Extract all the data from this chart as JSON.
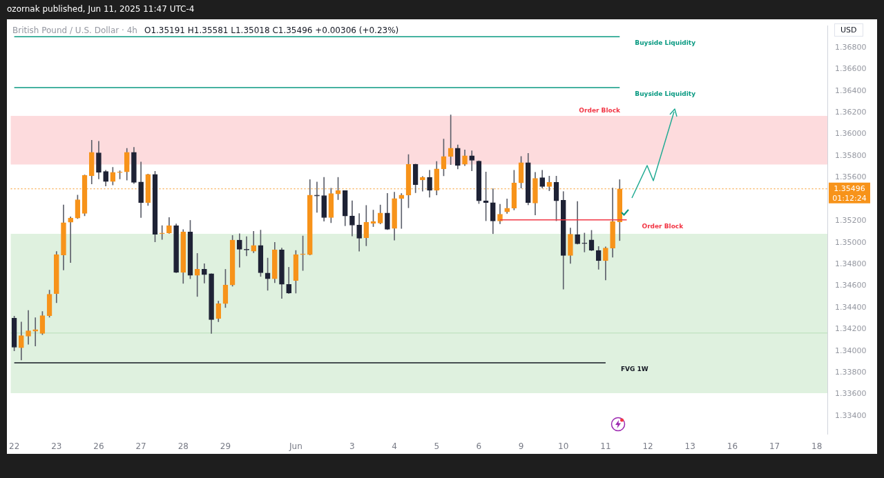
{
  "chart_data": {
    "type": "candlestick",
    "title": "British Pound / U.S. Dollar · 4h",
    "subtitle": "O1.35191 H1.35581 L1.35018 C1.35496 +0.00306 (+0.23%)",
    "ylabel": "USD",
    "annotations": [
      "ozornak published, Jun 11, 2025 11:47 UTC-4",
      "01:12:24"
    ],
    "categories": [
      "22",
      null,
      null,
      null,
      null,
      null,
      "23",
      null,
      null,
      null,
      null,
      null,
      "26",
      null,
      null,
      null,
      null,
      null,
      "27",
      null,
      null,
      null,
      null,
      null,
      "28",
      null,
      null,
      null,
      null,
      null,
      "29",
      null,
      null,
      null,
      null,
      null,
      null,
      null,
      null,
      null,
      "Jun",
      null,
      null,
      null,
      null,
      null,
      null,
      null,
      "3",
      null,
      null,
      null,
      null,
      null,
      "4",
      null,
      null,
      null,
      null,
      null,
      "5",
      null,
      null,
      null,
      null,
      null,
      "6",
      null,
      null,
      null,
      null,
      null,
      "9",
      null,
      null,
      null,
      null,
      null,
      "10",
      null,
      null,
      null,
      null,
      null,
      "11",
      null,
      null,
      null,
      null,
      null,
      "12",
      null,
      null,
      null,
      null,
      null,
      "13",
      null,
      null,
      null,
      null,
      null,
      "16",
      null,
      null,
      null,
      null,
      null,
      "17",
      null,
      null,
      null,
      null,
      null,
      "18",
      null
    ],
    "ohlc": [
      [
        1.34301,
        1.3432,
        1.34,
        1.34033
      ],
      [
        1.34029,
        1.34267,
        1.33916,
        1.3414
      ],
      [
        1.34135,
        1.34374,
        1.34061,
        1.34186
      ],
      [
        1.34182,
        1.34306,
        1.34044,
        1.34197
      ],
      [
        1.34161,
        1.34363,
        1.3415,
        1.34325
      ],
      [
        1.34325,
        1.34561,
        1.3431,
        1.34523
      ],
      [
        1.34529,
        1.34917,
        1.34444,
        1.34889
      ],
      [
        1.34885,
        1.35347,
        1.34747,
        1.35183
      ],
      [
        1.35188,
        1.35237,
        1.34815,
        1.35226
      ],
      [
        1.35226,
        1.35439,
        1.35222,
        1.35396
      ],
      [
        1.35269,
        1.35624,
        1.35247,
        1.3562
      ],
      [
        1.35616,
        1.35944,
        1.35541,
        1.35833
      ],
      [
        1.35829,
        1.35935,
        1.35588,
        1.35648
      ],
      [
        1.35656,
        1.35667,
        1.35522,
        1.35563
      ],
      [
        1.35563,
        1.35695,
        1.35531,
        1.35648
      ],
      [
        1.35646,
        1.35663,
        1.35588,
        1.3565
      ],
      [
        1.35652,
        1.35869,
        1.35577,
        1.35833
      ],
      [
        1.35833,
        1.3588,
        1.35545,
        1.35556
      ],
      [
        1.3556,
        1.35744,
        1.3523,
        1.35369
      ],
      [
        1.35369,
        1.35633,
        1.35343,
        1.35629
      ],
      [
        1.35629,
        1.35658,
        1.35007,
        1.35077
      ],
      [
        1.35081,
        1.35156,
        1.35028,
        1.35083
      ],
      [
        1.35088,
        1.35232,
        1.35084,
        1.35156
      ],
      [
        1.35156,
        1.35173,
        1.34721,
        1.34725
      ],
      [
        1.34725,
        1.3512,
        1.34623,
        1.35098
      ],
      [
        1.35098,
        1.35205,
        1.34666,
        1.34698
      ],
      [
        1.34698,
        1.349,
        1.34502,
        1.34753
      ],
      [
        1.34753,
        1.34804,
        1.34625,
        1.34704
      ],
      [
        1.34713,
        1.34713,
        1.34161,
        1.34289
      ],
      [
        1.343,
        1.3446,
        1.34269,
        1.34436
      ],
      [
        1.34436,
        1.34753,
        1.344,
        1.34608
      ],
      [
        1.34608,
        1.35066,
        1.34597,
        1.35023
      ],
      [
        1.35023,
        1.35081,
        1.34772,
        1.34938
      ],
      [
        1.34936,
        1.35055,
        1.34878,
        1.34932
      ],
      [
        1.34921,
        1.35104,
        1.34906,
        1.34974
      ],
      [
        1.34974,
        1.35115,
        1.34687,
        1.34721
      ],
      [
        1.34719,
        1.34857,
        1.34559,
        1.34665
      ],
      [
        1.34665,
        1.35002,
        1.34629,
        1.34932
      ],
      [
        1.34932,
        1.34949,
        1.34484,
        1.34614
      ],
      [
        1.34614,
        1.34772,
        1.34529,
        1.34533
      ],
      [
        1.3465,
        1.34927,
        1.34533,
        1.34889
      ],
      [
        1.34889,
        1.35061,
        1.34742,
        1.34893
      ],
      [
        1.34889,
        1.35581,
        1.34885,
        1.35438
      ],
      [
        1.35438,
        1.3556,
        1.35279,
        1.3543
      ],
      [
        1.35434,
        1.35602,
        1.35198,
        1.3523
      ],
      [
        1.3523,
        1.35502,
        1.35183,
        1.35453
      ],
      [
        1.35449,
        1.35602,
        1.35396,
        1.35479
      ],
      [
        1.35479,
        1.3548,
        1.35155,
        1.35245
      ],
      [
        1.35245,
        1.35385,
        1.35061,
        1.3516
      ],
      [
        1.35162,
        1.35268,
        1.34921,
        1.3504
      ],
      [
        1.35044,
        1.35343,
        1.3497,
        1.35187
      ],
      [
        1.35176,
        1.353,
        1.35147,
        1.35194
      ],
      [
        1.3518,
        1.35347,
        1.35172,
        1.35272
      ],
      [
        1.35272,
        1.35455,
        1.35119,
        1.35123
      ],
      [
        1.3513,
        1.35466,
        1.35023,
        1.35407
      ],
      [
        1.35407,
        1.35453,
        1.3513,
        1.35438
      ],
      [
        1.35438,
        1.35812,
        1.35321,
        1.35723
      ],
      [
        1.35723,
        1.35725,
        1.3546,
        1.35535
      ],
      [
        1.35578,
        1.3561,
        1.35475,
        1.35603
      ],
      [
        1.35603,
        1.35667,
        1.35418,
        1.35482
      ],
      [
        1.35482,
        1.35748,
        1.35439,
        1.3568
      ],
      [
        1.3568,
        1.35955,
        1.35616,
        1.35795
      ],
      [
        1.35795,
        1.36178,
        1.3572,
        1.35872
      ],
      [
        1.35872,
        1.35901,
        1.3568,
        1.35712
      ],
      [
        1.35723,
        1.35855,
        1.3571,
        1.35801
      ],
      [
        1.35801,
        1.35848,
        1.35663,
        1.35759
      ],
      [
        1.35752,
        1.35755,
        1.3536,
        1.35386
      ],
      [
        1.35386,
        1.35652,
        1.35201,
        1.35369
      ],
      [
        1.35369,
        1.35497,
        1.35082,
        1.35199
      ],
      [
        1.35199,
        1.35354,
        1.35173,
        1.35262
      ],
      [
        1.35284,
        1.35403,
        1.35269,
        1.35318
      ],
      [
        1.35318,
        1.35667,
        1.35301,
        1.3555
      ],
      [
        1.3555,
        1.35795,
        1.35503,
        1.35737
      ],
      [
        1.35737,
        1.35823,
        1.35348,
        1.35369
      ],
      [
        1.35365,
        1.35648,
        1.35254,
        1.35593
      ],
      [
        1.35599,
        1.35667,
        1.35503,
        1.35518
      ],
      [
        1.35518,
        1.35614,
        1.35478,
        1.35556
      ],
      [
        1.35556,
        1.35614,
        1.35201,
        1.35386
      ],
      [
        1.3539,
        1.35471,
        1.3457,
        1.34881
      ],
      [
        1.34881,
        1.35135,
        1.34807,
        1.35077
      ],
      [
        1.35073,
        1.3538,
        1.34986,
        1.34988
      ],
      [
        1.34994,
        1.35088,
        1.34913,
        1.3499
      ],
      [
        1.35024,
        1.35113,
        1.34924,
        1.34928
      ],
      [
        1.34928,
        1.34964,
        1.34753,
        1.34832
      ],
      [
        1.34832,
        1.3496,
        1.34655,
        1.34949
      ],
      [
        1.34949,
        1.35503,
        1.34864,
        1.35194
      ],
      [
        1.35191,
        1.35581,
        1.35018,
        1.35496
      ],
      null,
      null,
      null,
      null,
      null,
      null,
      null,
      null,
      null,
      null,
      null,
      null,
      null,
      null,
      null,
      null,
      null,
      null,
      null,
      null,
      null,
      null,
      null,
      null,
      null,
      null,
      null,
      null,
      null
    ],
    "colors": [
      "#1e2235",
      "#f7931a",
      "#f7931a",
      "#f7931a",
      "#f7931a",
      "#f7931a",
      "#f7931a",
      "#f7931a",
      "#f7931a",
      "#f7931a",
      "#f7931a",
      "#f7931a",
      "#1e2235",
      "#1e2235",
      "#f7931a",
      "#f7931a",
      "#f7931a",
      "#1e2235",
      "#1e2235",
      "#f7931a",
      "#1e2235",
      "#f7931a",
      "#f7931a",
      "#1e2235",
      "#f7931a",
      "#1e2235",
      "#f7931a",
      "#1e2235",
      "#1e2235",
      "#f7931a",
      "#f7931a",
      "#f7931a",
      "#1e2235",
      "#1e2235",
      "#f7931a",
      "#1e2235",
      "#1e2235",
      "#f7931a",
      "#1e2235",
      "#1e2235",
      "#f7931a",
      "#f7931a",
      "#f7931a",
      "#1e2235",
      "#1e2235",
      "#f7931a",
      "#f7931a",
      "#1e2235",
      "#1e2235",
      "#1e2235",
      "#f7931a",
      "#f7931a",
      "#f7931a",
      "#1e2235",
      "#f7931a",
      "#f7931a",
      "#f7931a",
      "#1e2235",
      "#f7931a",
      "#1e2235",
      "#f7931a",
      "#f7931a",
      "#f7931a",
      "#1e2235",
      "#f7931a",
      "#1e2235",
      "#1e2235",
      "#1e2235",
      "#1e2235",
      "#f7931a",
      "#f7931a",
      "#f7931a",
      "#f7931a",
      "#1e2235",
      "#f7931a",
      "#1e2235",
      "#f7931a",
      "#1e2235",
      "#1e2235",
      "#f7931a",
      "#1e2235",
      "#1e2235",
      "#1e2235",
      "#1e2235",
      "#f7931a",
      "#f7931a",
      "#f7931a",
      null,
      null,
      null,
      null,
      null,
      null,
      null,
      null,
      null,
      null,
      null,
      null,
      null,
      null,
      null,
      null,
      null,
      null,
      null,
      null,
      null,
      null,
      null,
      null,
      null,
      null,
      null,
      null,
      null
    ],
    "series": [
      {
        "type": "line",
        "name": "Buyside Liquidity",
        "color": "#089981",
        "values": [
          1.369,
          1.369,
          1.369,
          1.369,
          1.369,
          1.369,
          1.369,
          1.369,
          1.369,
          1.369,
          1.369,
          1.369,
          1.369,
          1.369,
          1.369,
          1.369,
          1.369,
          1.369,
          1.369,
          1.369,
          1.369,
          1.369,
          1.369,
          1.369,
          1.369,
          1.369,
          1.369,
          1.369,
          1.369,
          1.369,
          1.369,
          1.369,
          1.369,
          1.369,
          1.369,
          1.369,
          1.369,
          1.369,
          1.369,
          1.369,
          1.369,
          1.369,
          1.369,
          1.369,
          1.369,
          1.369,
          1.369,
          1.369,
          1.369,
          1.369,
          1.369,
          1.369,
          1.369,
          1.369,
          1.369,
          1.369,
          1.369,
          1.369,
          1.369,
          1.369,
          1.369,
          1.369,
          1.369,
          1.369,
          1.369,
          1.369,
          1.369,
          1.369,
          1.369,
          1.369,
          1.369,
          1.369,
          1.369,
          1.369,
          1.369,
          1.369,
          1.369,
          1.369,
          1.369,
          1.369,
          1.369,
          1.369,
          1.369,
          1.369,
          1.369,
          1.369,
          1.369,
          null,
          null,
          null,
          null,
          null,
          null,
          null,
          null,
          null,
          null,
          null,
          null,
          null,
          null,
          null,
          null,
          null,
          null,
          null,
          null,
          null,
          null,
          null,
          null,
          null,
          null,
          null,
          null,
          null
        ]
      },
      {
        "type": "line",
        "name": "Buyside Liquidity",
        "color": "#089981",
        "values": [
          1.3643,
          1.3643,
          1.3643,
          1.3643,
          1.3643,
          1.3643,
          1.3643,
          1.3643,
          1.3643,
          1.3643,
          1.3643,
          1.3643,
          1.3643,
          1.3643,
          1.3643,
          1.3643,
          1.3643,
          1.3643,
          1.3643,
          1.3643,
          1.3643,
          1.3643,
          1.3643,
          1.3643,
          1.3643,
          1.3643,
          1.3643,
          1.3643,
          1.3643,
          1.3643,
          1.3643,
          1.3643,
          1.3643,
          1.3643,
          1.3643,
          1.3643,
          1.3643,
          1.3643,
          1.3643,
          1.3643,
          1.3643,
          1.3643,
          1.3643,
          1.3643,
          1.3643,
          1.3643,
          1.3643,
          1.3643,
          1.3643,
          1.3643,
          1.3643,
          1.3643,
          1.3643,
          1.3643,
          1.3643,
          1.3643,
          1.3643,
          1.3643,
          1.3643,
          1.3643,
          1.3643,
          1.3643,
          1.3643,
          1.3643,
          1.3643,
          1.3643,
          1.3643,
          1.3643,
          1.3643,
          1.3643,
          1.3643,
          1.3643,
          1.3643,
          1.3643,
          1.3643,
          1.3643,
          1.3643,
          1.3643,
          1.3643,
          1.3643,
          1.3643,
          1.3643,
          1.3643,
          1.3643,
          1.3643,
          1.3643,
          1.3643,
          null,
          null,
          null,
          null,
          null,
          null,
          null,
          null,
          null,
          null,
          null,
          null,
          null,
          null,
          null,
          null,
          null,
          null,
          null,
          null,
          null,
          null,
          null,
          null,
          null,
          null,
          null,
          null,
          null
        ]
      },
      {
        "type": "line",
        "name": "FVG 1W",
        "color": "#131722",
        "values": [
          1.3389,
          1.3389,
          1.3389,
          1.3389,
          1.3389,
          1.3389,
          1.3389,
          1.3389,
          1.3389,
          1.3389,
          1.3389,
          1.3389,
          1.3389,
          1.3389,
          1.3389,
          1.3389,
          1.3389,
          1.3389,
          1.3389,
          1.3389,
          1.3389,
          1.3389,
          1.3389,
          1.3389,
          1.3389,
          1.3389,
          1.3389,
          1.3389,
          1.3389,
          1.3389,
          1.3389,
          1.3389,
          1.3389,
          1.3389,
          1.3389,
          1.3389,
          1.3389,
          1.3389,
          1.3389,
          1.3389,
          1.3389,
          1.3389,
          1.3389,
          1.3389,
          1.3389,
          1.3389,
          1.3389,
          1.3389,
          1.3389,
          1.3389,
          1.3389,
          1.3389,
          1.3389,
          1.3389,
          1.3389,
          1.3389,
          1.3389,
          1.3389,
          1.3389,
          1.3389,
          1.3389,
          1.3389,
          1.3389,
          1.3389,
          1.3389,
          1.3389,
          1.3389,
          1.3389,
          1.3389,
          1.3389,
          1.3389,
          1.3389,
          1.3389,
          1.3389,
          1.3389,
          1.3389,
          1.3389,
          1.3389,
          1.3389,
          1.3389,
          1.3389,
          1.3389,
          1.3389,
          1.3389,
          1.3389,
          null,
          null,
          null,
          null,
          null,
          null,
          null,
          null,
          null,
          null,
          null,
          null,
          null,
          null,
          null,
          null,
          null,
          null,
          null,
          null,
          null,
          null,
          null,
          null,
          null,
          null,
          null,
          null,
          null,
          null,
          null
        ]
      },
      {
        "type": "line",
        "name": "Order Block",
        "color": "#f23645",
        "values": [
          null,
          null,
          null,
          null,
          null,
          null,
          null,
          null,
          null,
          null,
          null,
          null,
          null,
          null,
          null,
          null,
          null,
          null,
          null,
          null,
          null,
          null,
          null,
          null,
          null,
          null,
          null,
          null,
          null,
          null,
          null,
          null,
          null,
          null,
          null,
          null,
          null,
          null,
          null,
          null,
          null,
          null,
          null,
          null,
          null,
          null,
          null,
          null,
          null,
          null,
          null,
          null,
          null,
          null,
          null,
          null,
          null,
          null,
          null,
          null,
          null,
          null,
          null,
          null,
          null,
          null,
          null,
          null,
          null,
          1.3521,
          1.3521,
          1.3521,
          1.3521,
          1.3521,
          1.3521,
          1.3521,
          1.3521,
          1.3521,
          1.3521,
          1.3521,
          1.3521,
          1.3521,
          1.3521,
          1.3521,
          1.3521,
          1.3521,
          1.3521,
          1.3521,
          null,
          null,
          null,
          null,
          null,
          null,
          null,
          null,
          null,
          null,
          null,
          null,
          null,
          null,
          null,
          null,
          null,
          null,
          null,
          null,
          null,
          null,
          null,
          null,
          null,
          null,
          null,
          null
        ]
      }
    ],
    "bands": [
      {
        "axis": "y",
        "from": 1.3572,
        "to": 1.3617,
        "label": "Order Block",
        "color": "#f23645"
      },
      {
        "axis": "y",
        "from": 1.3416,
        "to": 1.3508,
        "color": "#4caf50"
      },
      {
        "axis": "y",
        "from": 1.3361,
        "to": 1.3417,
        "color": "#4caf50"
      }
    ],
    "ref_lines": [
      {
        "axis": "y",
        "value": 1.35496,
        "label": "1.35496",
        "color": "#f7931a",
        "line_style": "dotted"
      }
    ],
    "ylim": [
      1.3323,
      1.37
    ],
    "yticks": [
      {
        "value": 1.334,
        "label": "1.33400"
      },
      {
        "value": 1.336,
        "label": "1.33600"
      },
      {
        "value": 1.338,
        "label": "1.33800"
      },
      {
        "value": 1.34,
        "label": "1.34000"
      },
      {
        "value": 1.342,
        "label": "1.34200"
      },
      {
        "value": 1.344,
        "label": "1.34400"
      },
      {
        "value": 1.346,
        "label": "1.34600"
      },
      {
        "value": 1.348,
        "label": "1.34800"
      },
      {
        "value": 1.35,
        "label": "1.35000"
      },
      {
        "value": 1.352,
        "label": "1.35200"
      },
      {
        "value": 1.356,
        "label": "1.35600"
      },
      {
        "value": 1.358,
        "label": "1.35800"
      },
      {
        "value": 1.36,
        "label": "1.36000"
      },
      {
        "value": 1.362,
        "label": "1.36200"
      },
      {
        "value": 1.364,
        "label": "1.36400"
      },
      {
        "value": 1.366,
        "label": "1.36600"
      },
      {
        "value": 1.368,
        "label": "1.36800"
      }
    ]
  }
}
